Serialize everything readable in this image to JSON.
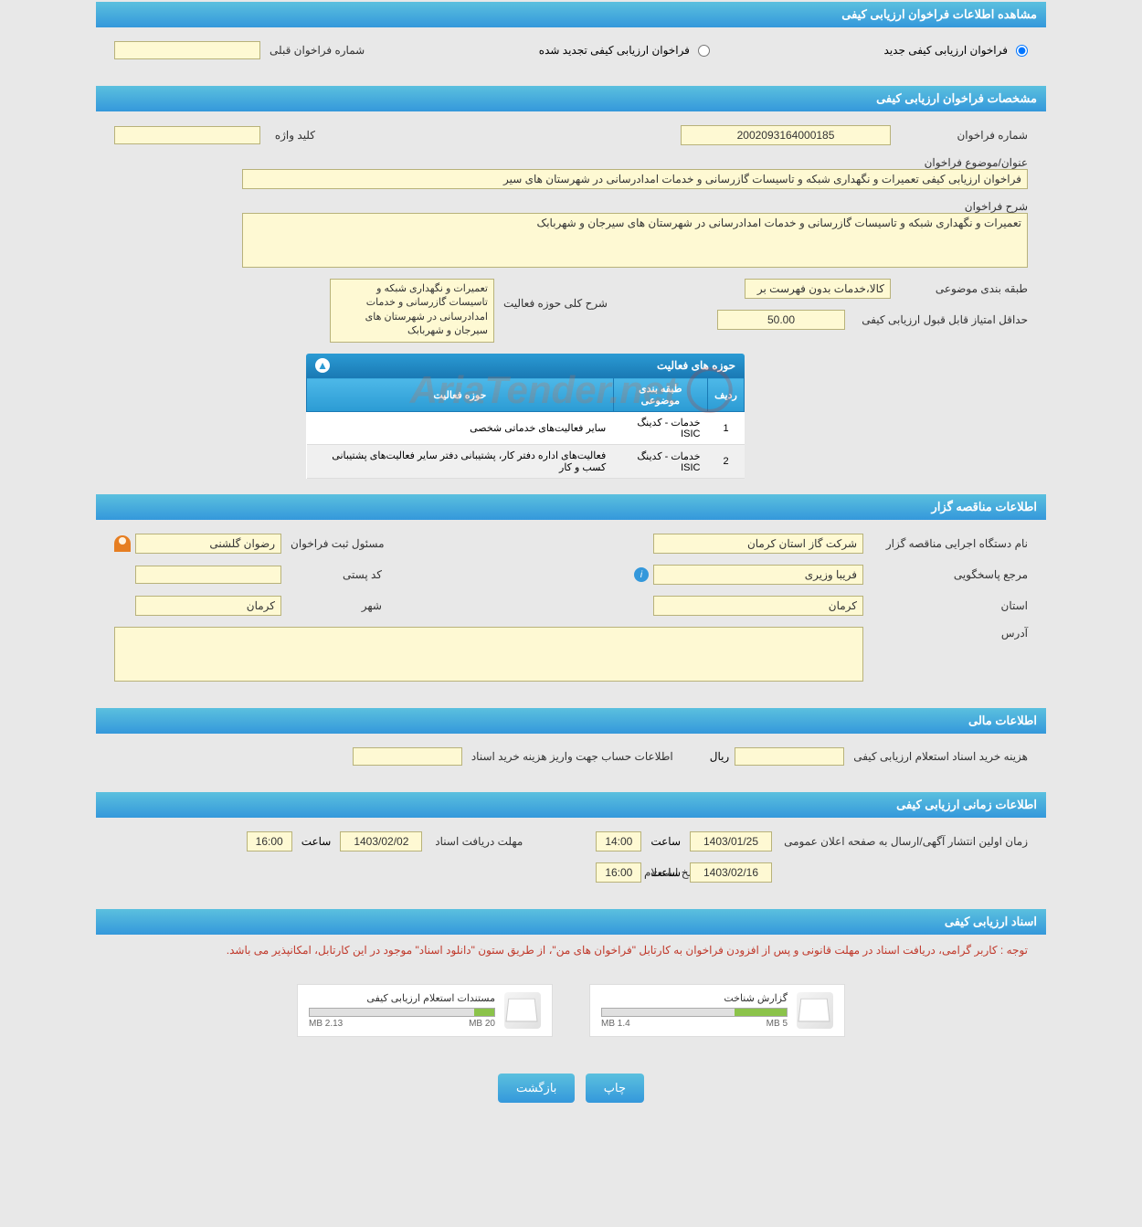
{
  "main_header": "مشاهده اطلاعات فراخوان ارزیابی کیفی",
  "top": {
    "radio_new": "فراخوان ارزیابی کیفی جدید",
    "radio_renewed": "فراخوان ارزیابی کیفی تجدید شده",
    "prev_label": "شماره فراخوان قبلی",
    "prev_value": ""
  },
  "spec_header": "مشخصات فراخوان ارزیابی کیفی",
  "spec": {
    "number_label": "شماره فراخوان",
    "number_value": "2002093164000185",
    "keyword_label": "کلید واژه",
    "keyword_value": "",
    "subject_label": "عنوان/موضوع فراخوان",
    "subject_value": "فراخوان ارزیابی کیفی تعمیرات و نگهداری شبکه و تاسیسات گازرسانی و خدمات امدادرسانی در شهرستان های سیر",
    "desc_label": "شرح فراخوان",
    "desc_value": "تعمیرات و نگهداری شبکه و تاسیسات گازرسانی و خدمات امدادرسانی در شهرستان های سیرجان و شهربابک",
    "category_label": "طبقه بندی موضوعی",
    "category_value": "کالا،خدمات بدون فهرست بر",
    "scope_label": "شرح کلی حوزه فعالیت",
    "scope_value": "تعمیرات و نگهداری شبکه و تاسیسات گازرسانی و خدمات امدادرسانی در شهرستان های سیرجان و شهربابک",
    "min_score_label": "حداقل امتیاز قابل قبول ارزیابی کیفی",
    "min_score_value": "50.00"
  },
  "activities": {
    "panel_title": "حوزه های فعالیت",
    "col_row": "ردیف",
    "col_category": "طبقه بندی موضوعی",
    "col_scope": "حوزه فعالیت",
    "rows": [
      {
        "n": "1",
        "cat": "خدمات - کدینگ ISIC",
        "scope": "سایر فعالیت‌های خدماتی شخصی"
      },
      {
        "n": "2",
        "cat": "خدمات - کدینگ ISIC",
        "scope": "فعالیت‌های  اداره دفتر کار، پشتیبانی دفتر سایر  فعالیت‌های پشتیبانی کسب و کار"
      }
    ]
  },
  "watermark": "AriaTender.net",
  "org_header": "اطلاعات مناقصه گزار",
  "org": {
    "agency_label": "نام دستگاه اجرایی مناقصه گزار",
    "agency_value": "شرکت گاز استان کرمان",
    "registrar_label": "مسئول ثبت فراخوان",
    "registrar_value": "رضوان گلشنی",
    "responder_label": "مرجع پاسخگویی",
    "responder_value": "فریبا وزیری",
    "postal_label": "کد پستی",
    "postal_value": "",
    "province_label": "استان",
    "province_value": "کرمان",
    "city_label": "شهر",
    "city_value": "کرمان",
    "address_label": "آدرس",
    "address_value": ""
  },
  "fin_header": "اطلاعات مالی",
  "fin": {
    "cost_label": "هزینه خرید اسناد استعلام ارزیابی کیفی",
    "cost_value": "",
    "currency": "ریال",
    "account_label": "اطلاعات حساب جهت واریز هزینه خرید اسناد",
    "account_value": ""
  },
  "time_header": "اطلاعات زمانی ارزیابی کیفی",
  "time": {
    "publish_label": "زمان اولین انتشار آگهی/ارسال به صفحه اعلان عمومی",
    "publish_date": "1403/01/25",
    "publish_time": "14:00",
    "receive_label": "مهلت دریافت اسناد",
    "receive_date": "1403/02/02",
    "receive_time": "16:00",
    "response_label": "مهلت ارسال پاسخ استعلام",
    "response_date": "1403/02/16",
    "response_time": "16:00",
    "time_label": "ساعت"
  },
  "docs_header": "اسناد ارزیابی کیفی",
  "notice": "توجه : کاربر گرامی، دریافت اسناد در مهلت قانونی و پس از افزودن فراخوان به کارتابل \"فراخوان های من\"، از طریق ستون \"دانلود اسناد\" موجود در این کارتابل، امکانپذیر می باشد.",
  "docs": [
    {
      "title": "گزارش شناخت",
      "used": "1.4 MB",
      "total": "5 MB",
      "pct": 28
    },
    {
      "title": "مستندات استعلام ارزیابی کیفی",
      "used": "2.13 MB",
      "total": "20 MB",
      "pct": 11
    }
  ],
  "buttons": {
    "print": "چاپ",
    "back": "بازگشت"
  }
}
